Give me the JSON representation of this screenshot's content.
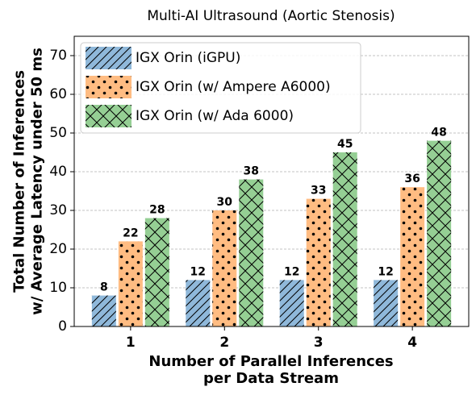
{
  "chart_data": {
    "type": "bar",
    "title": "Multi-AI Ultrasound (Aortic Stenosis)",
    "xlabel_lines": [
      "Number of Parallel Inferences",
      "per Data Stream"
    ],
    "ylabel_lines": [
      "Total Number of Inferences",
      "w/ Average Latency under 50 ms"
    ],
    "categories": [
      "1",
      "2",
      "3",
      "4"
    ],
    "ylim": [
      0,
      75
    ],
    "yticks": [
      0,
      10,
      20,
      30,
      40,
      50,
      60,
      70
    ],
    "grid": "horizontal-dashed",
    "legend_position": "top-left",
    "series": [
      {
        "name": "IGX Orin (iGPU)",
        "values": [
          8,
          12,
          12,
          12
        ],
        "color": "#8fb8da",
        "hatch": "diagonal"
      },
      {
        "name": "IGX Orin (w/ Ampere A6000)",
        "values": [
          22,
          30,
          33,
          36
        ],
        "color": "#ffbc82",
        "hatch": "dots"
      },
      {
        "name": "IGX Orin (w/ Ada 6000)",
        "values": [
          28,
          38,
          45,
          48
        ],
        "color": "#95cf94",
        "hatch": "cross"
      }
    ]
  }
}
